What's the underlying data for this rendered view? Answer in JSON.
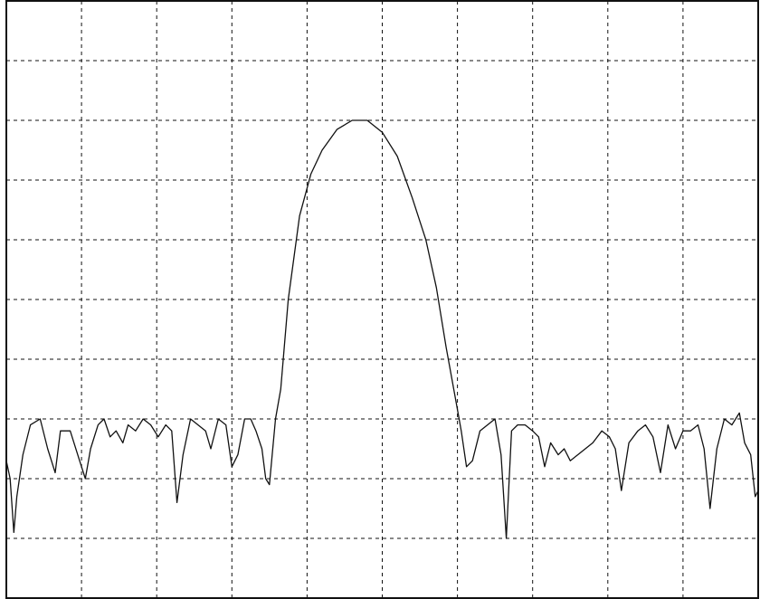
{
  "chart_data": {
    "type": "line",
    "title": "",
    "xlabel": "",
    "ylabel": "",
    "grid": true,
    "x_divisions": 10,
    "y_divisions": 10,
    "xlim": [
      0,
      10
    ],
    "ylim": [
      0,
      10
    ],
    "series": [
      {
        "points": [
          [
            0.0,
            2.3
          ],
          [
            0.05,
            2.0
          ],
          [
            0.1,
            1.1
          ],
          [
            0.14,
            1.7
          ],
          [
            0.22,
            2.4
          ],
          [
            0.32,
            2.9
          ],
          [
            0.45,
            3.0
          ],
          [
            0.55,
            2.5
          ],
          [
            0.65,
            2.1
          ],
          [
            0.72,
            2.8
          ],
          [
            0.85,
            2.8
          ],
          [
            0.95,
            2.4
          ],
          [
            1.05,
            2.0
          ],
          [
            1.12,
            2.5
          ],
          [
            1.22,
            2.9
          ],
          [
            1.3,
            3.0
          ],
          [
            1.38,
            2.7
          ],
          [
            1.46,
            2.8
          ],
          [
            1.55,
            2.6
          ],
          [
            1.62,
            2.9
          ],
          [
            1.72,
            2.8
          ],
          [
            1.82,
            3.0
          ],
          [
            1.92,
            2.9
          ],
          [
            2.02,
            2.7
          ],
          [
            2.12,
            2.9
          ],
          [
            2.2,
            2.8
          ],
          [
            2.27,
            1.6
          ],
          [
            2.35,
            2.4
          ],
          [
            2.45,
            3.0
          ],
          [
            2.55,
            2.9
          ],
          [
            2.65,
            2.8
          ],
          [
            2.72,
            2.5
          ],
          [
            2.82,
            3.0
          ],
          [
            2.92,
            2.9
          ],
          [
            3.0,
            2.2
          ],
          [
            3.08,
            2.4
          ],
          [
            3.17,
            3.0
          ],
          [
            3.25,
            3.0
          ],
          [
            3.32,
            2.8
          ],
          [
            3.4,
            2.5
          ],
          [
            3.45,
            2.0
          ],
          [
            3.5,
            1.9
          ],
          [
            3.58,
            3.0
          ],
          [
            3.65,
            3.5
          ],
          [
            3.75,
            5.0
          ],
          [
            3.9,
            6.4
          ],
          [
            4.05,
            7.1
          ],
          [
            4.2,
            7.5
          ],
          [
            4.4,
            7.85
          ],
          [
            4.6,
            8.0
          ],
          [
            4.8,
            8.0
          ],
          [
            5.0,
            7.8
          ],
          [
            5.2,
            7.4
          ],
          [
            5.4,
            6.7
          ],
          [
            5.58,
            6.0
          ],
          [
            5.72,
            5.2
          ],
          [
            5.85,
            4.2
          ],
          [
            5.98,
            3.3
          ],
          [
            6.05,
            2.8
          ],
          [
            6.12,
            2.2
          ],
          [
            6.2,
            2.3
          ],
          [
            6.3,
            2.8
          ],
          [
            6.4,
            2.9
          ],
          [
            6.5,
            3.0
          ],
          [
            6.58,
            2.4
          ],
          [
            6.65,
            1.0
          ],
          [
            6.72,
            2.8
          ],
          [
            6.8,
            2.9
          ],
          [
            6.9,
            2.9
          ],
          [
            7.0,
            2.8
          ],
          [
            7.08,
            2.7
          ],
          [
            7.16,
            2.2
          ],
          [
            7.24,
            2.6
          ],
          [
            7.34,
            2.4
          ],
          [
            7.42,
            2.5
          ],
          [
            7.5,
            2.3
          ],
          [
            7.6,
            2.4
          ],
          [
            7.7,
            2.5
          ],
          [
            7.8,
            2.6
          ],
          [
            7.92,
            2.8
          ],
          [
            8.02,
            2.7
          ],
          [
            8.1,
            2.5
          ],
          [
            8.18,
            1.8
          ],
          [
            8.28,
            2.6
          ],
          [
            8.4,
            2.8
          ],
          [
            8.5,
            2.9
          ],
          [
            8.6,
            2.7
          ],
          [
            8.7,
            2.1
          ],
          [
            8.8,
            2.9
          ],
          [
            8.9,
            2.5
          ],
          [
            9.0,
            2.8
          ],
          [
            9.1,
            2.8
          ],
          [
            9.2,
            2.9
          ],
          [
            9.28,
            2.5
          ],
          [
            9.36,
            1.5
          ],
          [
            9.45,
            2.5
          ],
          [
            9.55,
            3.0
          ],
          [
            9.65,
            2.9
          ],
          [
            9.75,
            3.1
          ],
          [
            9.82,
            2.6
          ],
          [
            9.9,
            2.4
          ],
          [
            9.96,
            1.7
          ],
          [
            10.0,
            1.8
          ]
        ]
      }
    ]
  }
}
